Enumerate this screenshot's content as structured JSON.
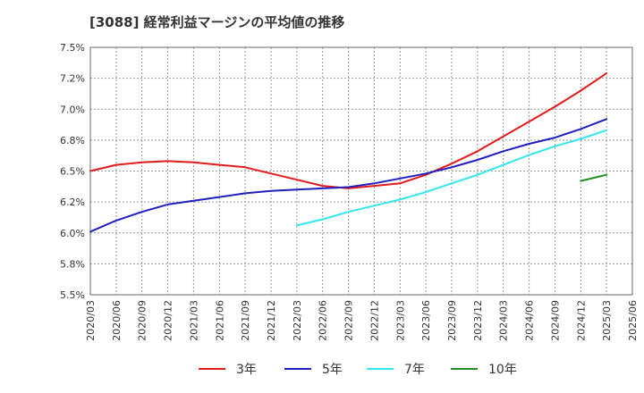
{
  "chart_data": {
    "type": "line",
    "title": "[3088]  経常利益マージンの平均値の推移",
    "xlabel": "",
    "ylabel": "",
    "ylim": [
      5.5,
      7.5
    ],
    "grid": true,
    "legend_position": "bottom",
    "yticks": [
      "7.5%",
      "7.2%",
      "7.0%",
      "6.8%",
      "6.5%",
      "6.2%",
      "6.0%",
      "5.8%",
      "5.5%"
    ],
    "categories": [
      "2020/03",
      "2020/06",
      "2020/09",
      "2020/12",
      "2021/03",
      "2021/06",
      "2021/09",
      "2021/12",
      "2022/03",
      "2022/06",
      "2022/09",
      "2022/12",
      "2023/03",
      "2023/06",
      "2023/09",
      "2023/12",
      "2024/03",
      "2024/06",
      "2024/09",
      "2024/12",
      "2025/03",
      "2025/06"
    ],
    "series": [
      {
        "name": "3年",
        "color": "#e31a1c",
        "values": [
          6.5,
          6.55,
          6.57,
          6.58,
          6.57,
          6.55,
          6.53,
          6.48,
          6.43,
          6.38,
          6.36,
          6.38,
          6.4,
          6.47,
          6.56,
          6.66,
          6.78,
          6.9,
          7.02,
          7.15,
          7.29,
          null
        ]
      },
      {
        "name": "5年",
        "color": "#1f1fbf",
        "values": [
          6.01,
          6.1,
          6.17,
          6.23,
          6.26,
          6.29,
          6.32,
          6.34,
          6.35,
          6.36,
          6.37,
          6.4,
          6.44,
          6.48,
          6.53,
          6.59,
          6.66,
          6.72,
          6.77,
          6.84,
          6.92,
          null
        ]
      },
      {
        "name": "7年",
        "color": "#33e6f0",
        "values": [
          null,
          null,
          null,
          null,
          null,
          null,
          null,
          null,
          6.06,
          6.11,
          6.17,
          6.22,
          6.27,
          6.33,
          6.4,
          6.47,
          6.55,
          6.63,
          6.7,
          6.76,
          6.83,
          null
        ]
      },
      {
        "name": "10年",
        "color": "#228b22",
        "values": [
          null,
          null,
          null,
          null,
          null,
          null,
          null,
          null,
          null,
          null,
          null,
          null,
          null,
          null,
          null,
          null,
          null,
          null,
          null,
          6.42,
          6.47,
          null
        ]
      }
    ]
  }
}
